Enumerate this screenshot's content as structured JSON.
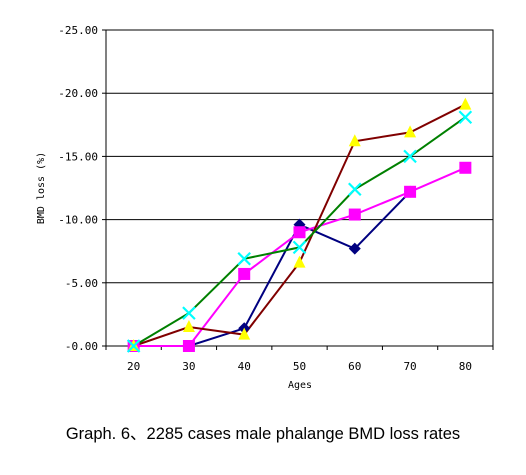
{
  "caption": "Graph. 6、2285 cases male phalange BMD loss rates",
  "chart_data": {
    "type": "line",
    "xlabel": "Ages",
    "ylabel": "BMD loss (%)",
    "categories": [
      "20",
      "30",
      "40",
      "50",
      "60",
      "70",
      "80"
    ],
    "y_ticks": [
      "-25.00",
      "-20.00",
      "-15.00",
      "-10.00",
      "-5.00",
      "-0.00"
    ],
    "ylim": [
      0,
      -25
    ],
    "grid": "horizontal",
    "series": [
      {
        "marker": "diamond",
        "line_color": "#000080",
        "marker_color": "#000080",
        "values": [
          0.0,
          0.0,
          -1.4,
          -9.6,
          -7.7,
          -12.2,
          null
        ]
      },
      {
        "marker": "square",
        "line_color": "#ff00ff",
        "marker_color": "#ff00ff",
        "values": [
          0.0,
          0.0,
          -5.7,
          -9.0,
          -10.4,
          -12.2,
          -14.1
        ]
      },
      {
        "marker": "triangle",
        "line_color": "#800000",
        "marker_color": "#ffff00",
        "values": [
          0.0,
          -1.5,
          -0.9,
          -6.6,
          -16.2,
          -16.9,
          -19.1
        ]
      },
      {
        "marker": "x",
        "line_color": "#008000",
        "marker_color": "#00ffff",
        "values": [
          0.0,
          -2.6,
          -6.9,
          -7.8,
          -12.4,
          -15.0,
          -18.1
        ]
      }
    ]
  }
}
